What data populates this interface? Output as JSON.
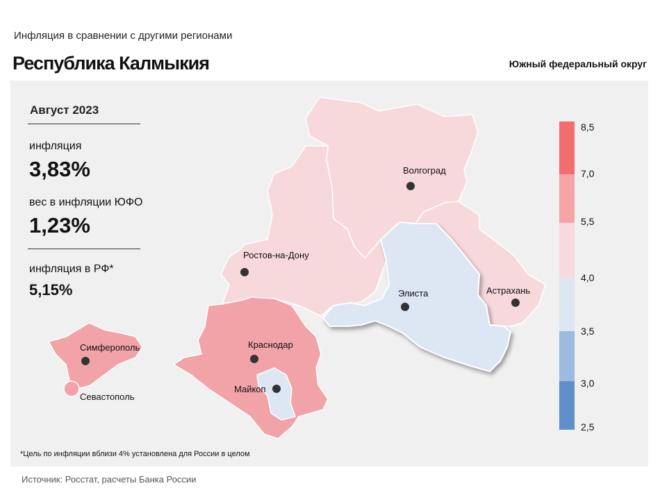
{
  "header": {
    "subtitle": "Инфляция  в сравнении  с другими  регионами",
    "title": "Республика Калмыкия",
    "district": "Южный федеральный округ"
  },
  "stats": {
    "period": "Август 2023",
    "inflation_label": "инфляция",
    "inflation_value": "3,83%",
    "weight_label": "вес в инфляции  ЮФО",
    "weight_value": "1,23%",
    "rf_label": "инфляция  в РФ*",
    "rf_value": "5,15%"
  },
  "map": {
    "cities": [
      {
        "name": "Волгоград"
      },
      {
        "name": "Ростов-на-Дону"
      },
      {
        "name": "Элиста"
      },
      {
        "name": "Астрахань"
      },
      {
        "name": "Симферополь"
      },
      {
        "name": "Краснодар"
      },
      {
        "name": "Майкоп"
      },
      {
        "name": "Севастополь"
      }
    ],
    "region_colors": {
      "light_pink": "#f7d9dc",
      "pink": "#f2a3a8",
      "light_blue": "#dde6f3"
    }
  },
  "legend": {
    "ticks": [
      "8,5",
      "7,0",
      "5,5",
      "4,0",
      "3,5",
      "3,0",
      "2,5"
    ],
    "colors": [
      "#f26d6d",
      "#f6a4a6",
      "#f8d9dc",
      "#dde6f3",
      "#9dbadf",
      "#5f8fc9"
    ]
  },
  "footnote": "*Цель по инфляции вблизи 4% установлена для России в целом",
  "source": "Источник: Росстат, расчеты Банка России"
}
